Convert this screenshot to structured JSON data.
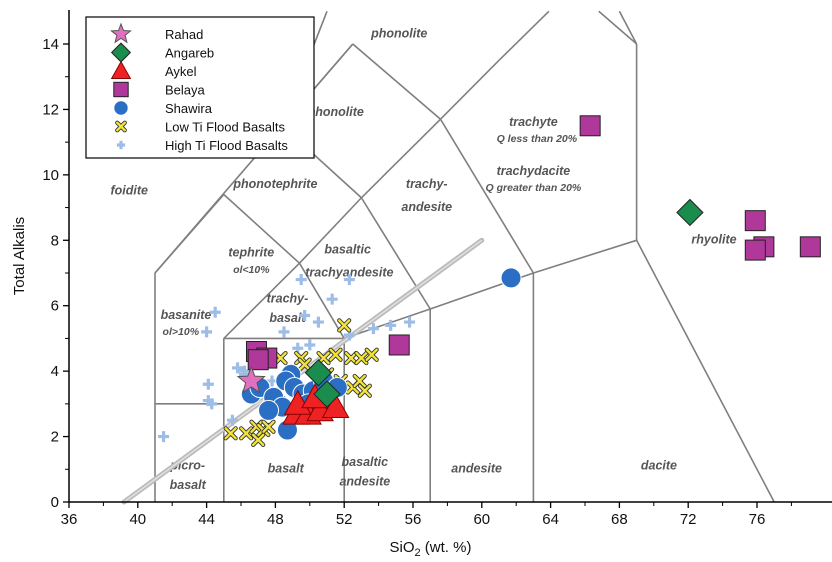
{
  "chart_data": {
    "type": "scatter",
    "xlabel": "SiO",
    "xlabel_sub": "2",
    "xlabel_unit": " (wt. %)",
    "ylabel": "Total Alkalis",
    "xlim": [
      36,
      80
    ],
    "ylim": [
      0,
      15
    ],
    "xticks": [
      36,
      40,
      44,
      48,
      52,
      56,
      60,
      64,
      68,
      72,
      76
    ],
    "yticks": [
      0,
      2,
      4,
      6,
      8,
      10,
      12,
      14
    ],
    "grid": false,
    "legend_position": "top-left",
    "colors": {
      "Rahad": "#e070c0",
      "Angareb": "#1a8c4e",
      "Aykel": "#ee2222",
      "Belaya": "#b0389a",
      "Shawira": "#2a6fc4",
      "Low Ti Flood Basalts": "#f2e43a",
      "High Ti Flood Basalts": "#9dbde6"
    },
    "legend": [
      {
        "name": "Rahad",
        "marker": "star"
      },
      {
        "name": "Angareb",
        "marker": "diamond"
      },
      {
        "name": "Aykel",
        "marker": "triangle"
      },
      {
        "name": "Belaya",
        "marker": "square"
      },
      {
        "name": "Shawira",
        "marker": "circle"
      },
      {
        "name": "Low Ti Flood Basalts",
        "marker": "x"
      },
      {
        "name": "High Ti Flood Basalts",
        "marker": "plus"
      }
    ],
    "fields": [
      {
        "text": "foidite",
        "x": 39.5,
        "y": 9.4
      },
      {
        "text": "phonolite",
        "x": 55.2,
        "y": 14.2
      },
      {
        "text": "tephriphonolite",
        "x": 50.5,
        "y": 11.8
      },
      {
        "text": "phonotephrite",
        "x": 48.0,
        "y": 9.6
      },
      {
        "text": "trachyte",
        "x": 63.0,
        "y": 11.5
      },
      {
        "text": "Q less than 20%",
        "x": 63.2,
        "y": 11.0,
        "small": true
      },
      {
        "text": "trachydacite",
        "x": 63.0,
        "y": 10.0
      },
      {
        "text": "Q greater than 20%",
        "x": 63.0,
        "y": 9.5,
        "small": true
      },
      {
        "text": "trachy-",
        "x": 56.8,
        "y": 9.6
      },
      {
        "text": "andesite",
        "x": 56.8,
        "y": 8.9
      },
      {
        "text": "tephrite",
        "x": 46.6,
        "y": 7.5
      },
      {
        "text": "ol<10%",
        "x": 46.6,
        "y": 7.0,
        "small": true
      },
      {
        "text": "basaltic",
        "x": 52.2,
        "y": 7.6
      },
      {
        "text": "trachyandesite",
        "x": 52.3,
        "y": 6.9
      },
      {
        "text": "trachy-",
        "x": 48.7,
        "y": 6.1
      },
      {
        "text": "basalt",
        "x": 48.7,
        "y": 5.5
      },
      {
        "text": "basanite",
        "x": 42.8,
        "y": 5.6
      },
      {
        "text": "ol>10%",
        "x": 42.5,
        "y": 5.1,
        "small": true
      },
      {
        "text": "rhyolite",
        "x": 73.5,
        "y": 7.9
      },
      {
        "text": "picro-",
        "x": 42.9,
        "y": 1.0
      },
      {
        "text": "basalt",
        "x": 42.9,
        "y": 0.4
      },
      {
        "text": "basalt",
        "x": 48.6,
        "y": 0.9
      },
      {
        "text": "basaltic",
        "x": 53.2,
        "y": 1.1
      },
      {
        "text": "andesite",
        "x": 53.2,
        "y": 0.5
      },
      {
        "text": "andesite",
        "x": 59.7,
        "y": 0.9
      },
      {
        "text": "dacite",
        "x": 70.3,
        "y": 1.0
      }
    ],
    "series": [
      {
        "name": "Rahad",
        "marker": "star",
        "points": [
          [
            46.6,
            3.7
          ]
        ]
      },
      {
        "name": "Angareb",
        "marker": "diamond",
        "points": [
          [
            72.1,
            8.85
          ],
          [
            50.5,
            3.95
          ],
          [
            51.0,
            3.3
          ]
        ]
      },
      {
        "name": "Aykel",
        "marker": "triangle",
        "points": [
          [
            49.2,
            2.7
          ],
          [
            49.9,
            2.7
          ],
          [
            50.6,
            2.8
          ],
          [
            51.5,
            2.9
          ],
          [
            49.3,
            3.0
          ],
          [
            50.3,
            3.2
          ]
        ]
      },
      {
        "name": "Belaya",
        "marker": "square",
        "points": [
          [
            66.3,
            11.5
          ],
          [
            75.9,
            8.6
          ],
          [
            76.4,
            7.8
          ],
          [
            75.9,
            7.7
          ],
          [
            79.1,
            7.8
          ],
          [
            55.2,
            4.8
          ],
          [
            46.9,
            4.6
          ],
          [
            47.5,
            4.4
          ],
          [
            47.0,
            4.35
          ]
        ]
      },
      {
        "name": "Shawira",
        "marker": "circle",
        "points": [
          [
            61.7,
            6.85
          ],
          [
            46.6,
            3.3
          ],
          [
            47.1,
            3.5
          ],
          [
            48.2,
            3.0
          ],
          [
            48.9,
            3.9
          ],
          [
            48.6,
            3.7
          ],
          [
            47.9,
            3.2
          ],
          [
            49.1,
            3.5
          ],
          [
            49.6,
            3.3
          ],
          [
            50.2,
            3.4
          ],
          [
            50.8,
            3.7
          ],
          [
            51.6,
            3.5
          ],
          [
            48.4,
            2.9
          ],
          [
            48.7,
            2.2
          ],
          [
            49.9,
            3.0
          ],
          [
            47.6,
            2.8
          ],
          [
            50.5,
            2.9
          ]
        ]
      },
      {
        "name": "Low Ti Flood Basalts",
        "marker": "x",
        "points": [
          [
            52.0,
            5.4
          ],
          [
            50.8,
            4.4
          ],
          [
            51.5,
            4.5
          ],
          [
            52.4,
            4.4
          ],
          [
            53.0,
            4.4
          ],
          [
            53.6,
            4.5
          ],
          [
            51.0,
            3.9
          ],
          [
            51.8,
            3.7
          ],
          [
            52.5,
            3.5
          ],
          [
            53.2,
            3.4
          ],
          [
            52.9,
            3.7
          ],
          [
            45.4,
            2.1
          ],
          [
            46.3,
            2.1
          ],
          [
            46.9,
            2.3
          ],
          [
            47.3,
            2.2
          ],
          [
            47.6,
            2.3
          ],
          [
            47.0,
            1.9
          ],
          [
            48.3,
            4.4
          ],
          [
            49.5,
            4.4
          ],
          [
            46.8,
            3.6
          ],
          [
            49.7,
            4.2
          ]
        ]
      },
      {
        "name": "High Ti Flood Basalts",
        "marker": "plus",
        "points": [
          [
            41.5,
            2.0
          ],
          [
            44.0,
            5.2
          ],
          [
            44.5,
            5.8
          ],
          [
            44.1,
            3.6
          ],
          [
            44.3,
            3.0
          ],
          [
            44.1,
            3.1
          ],
          [
            45.5,
            2.5
          ],
          [
            46.2,
            3.9
          ],
          [
            45.8,
            4.1
          ],
          [
            46.2,
            4.0
          ],
          [
            49.5,
            6.8
          ],
          [
            49.7,
            5.7
          ],
          [
            50.5,
            5.5
          ],
          [
            51.3,
            6.2
          ],
          [
            52.3,
            6.8
          ],
          [
            52.3,
            5.1
          ],
          [
            53.7,
            5.3
          ],
          [
            54.7,
            5.4
          ],
          [
            55.8,
            5.5
          ],
          [
            48.5,
            5.2
          ],
          [
            49.3,
            4.7
          ],
          [
            50.0,
            4.8
          ],
          [
            47.8,
            3.7
          ]
        ]
      }
    ]
  }
}
